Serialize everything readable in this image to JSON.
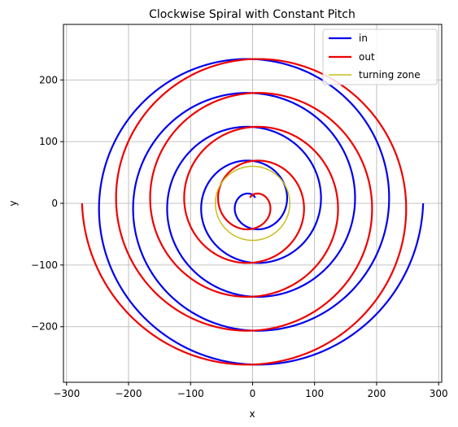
{
  "chart_data": {
    "type": "line",
    "title": "Clockwise Spiral with Constant Pitch",
    "xlabel": "x",
    "ylabel": "y",
    "xlim": [
      -305,
      305
    ],
    "ylim": [
      -290,
      290
    ],
    "xticks": [
      -300,
      -200,
      -100,
      0,
      100,
      200,
      300
    ],
    "yticks": [
      -200,
      -100,
      0,
      100,
      200
    ],
    "grid": true,
    "legend_position": "upper right",
    "pitch": 55,
    "turning_zone_radius": 60,
    "series": [
      {
        "name": "in",
        "color": "#0000ee",
        "description": "clockwise spiral, start radius 275, end radius 10",
        "r_start": 275,
        "r_end": 10,
        "theta_start_deg": 0,
        "direction": "clockwise",
        "center": [
          0,
          0
        ]
      },
      {
        "name": "out",
        "color": "#ee0000",
        "description": "clockwise spiral, start radius 10, end radius 275",
        "r_start": 10,
        "r_end": 275,
        "theta_end_deg": 180,
        "direction": "clockwise",
        "center": [
          0,
          0
        ]
      },
      {
        "name": "turning zone",
        "color": "#c8bd1b",
        "description": "circle radius 60",
        "radius": 60,
        "center": [
          0,
          0
        ]
      }
    ]
  }
}
